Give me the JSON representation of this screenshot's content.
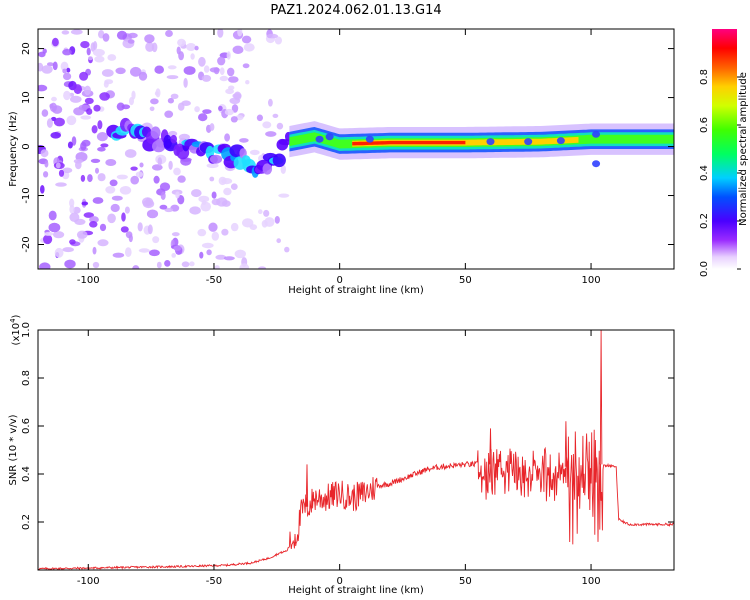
{
  "title": "PAZ1.2024.062.01.13.G14",
  "chart_data": [
    {
      "type": "heatmap",
      "xlabel": "Height of straight line (km)",
      "ylabel": "Frequency (Hz)",
      "xlim": [
        -120,
        133
      ],
      "ylim": [
        -25,
        24
      ],
      "xticks": [
        -100,
        -50,
        0,
        50,
        100
      ],
      "yticks": [
        -20,
        -10,
        0,
        10,
        20
      ],
      "colorbar": {
        "label": "Normalized spectral amplitude",
        "range": [
          0.0,
          1.0
        ],
        "ticks": [
          "0.0",
          "0.2",
          "0.4",
          "0.6",
          "0.8"
        ]
      },
      "ridge": {
        "description_points": [
          {
            "x": -85,
            "freq": 3
          },
          {
            "x": -70,
            "freq": 1
          },
          {
            "x": -55,
            "freq": -1
          },
          {
            "x": -40,
            "freq": -2
          },
          {
            "x": -30,
            "freq": -5
          },
          {
            "x": -20,
            "freq": 1
          },
          {
            "x": -10,
            "freq": 2
          },
          {
            "x": 0,
            "freq": 0.5
          },
          {
            "x": 20,
            "freq": 0.8
          },
          {
            "x": 50,
            "freq": 0.8
          },
          {
            "x": 80,
            "freq": 1.0
          },
          {
            "x": 100,
            "freq": 1.5
          },
          {
            "x": 133,
            "freq": 1.5
          }
        ]
      }
    },
    {
      "type": "line",
      "xlabel": "Height of straight line (km)",
      "ylabel": "SNR (10 * v/v)",
      "exponent_label": "(x10",
      "exponent_sup": "4",
      "exponent_close": ")",
      "xlim": [
        -120,
        133
      ],
      "ylim": [
        0,
        1.0
      ],
      "xticks": [
        -100,
        -50,
        0,
        50,
        100
      ],
      "yticks": [
        "0.2",
        "0.4",
        "0.6",
        "0.8",
        "1.0"
      ],
      "color": "#e8252a",
      "series": [
        {
          "points": [
            [
              -120,
              0.005
            ],
            [
              -100,
              0.008
            ],
            [
              -80,
              0.012
            ],
            [
              -60,
              0.015
            ],
            [
              -45,
              0.02
            ],
            [
              -35,
              0.03
            ],
            [
              -28,
              0.05
            ],
            [
              -24,
              0.07
            ],
            [
              -21,
              0.08
            ],
            [
              -19,
              0.12
            ],
            [
              -17,
              0.15
            ],
            [
              -15,
              0.25
            ],
            [
              -12,
              0.27
            ],
            [
              -10,
              0.3
            ],
            [
              -5,
              0.3
            ],
            [
              0,
              0.32
            ],
            [
              5,
              0.3
            ],
            [
              10,
              0.32
            ],
            [
              15,
              0.35
            ],
            [
              20,
              0.36
            ],
            [
              25,
              0.38
            ],
            [
              30,
              0.4
            ],
            [
              35,
              0.42
            ],
            [
              40,
              0.43
            ],
            [
              50,
              0.44
            ],
            [
              55,
              0.44
            ],
            [
              60,
              0.44
            ],
            [
              70,
              0.44
            ],
            [
              80,
              0.44
            ],
            [
              90,
              0.43
            ],
            [
              100,
              0.44
            ],
            [
              105,
              0.44
            ],
            [
              110,
              0.43
            ],
            [
              111,
              0.21
            ],
            [
              115,
              0.19
            ],
            [
              120,
              0.19
            ],
            [
              133,
              0.19
            ]
          ],
          "peaks": [
            [
              -13,
              0.44
            ],
            [
              104,
              1.0
            ],
            [
              60,
              0.59
            ],
            [
              90,
              0.62
            ]
          ]
        }
      ]
    }
  ]
}
